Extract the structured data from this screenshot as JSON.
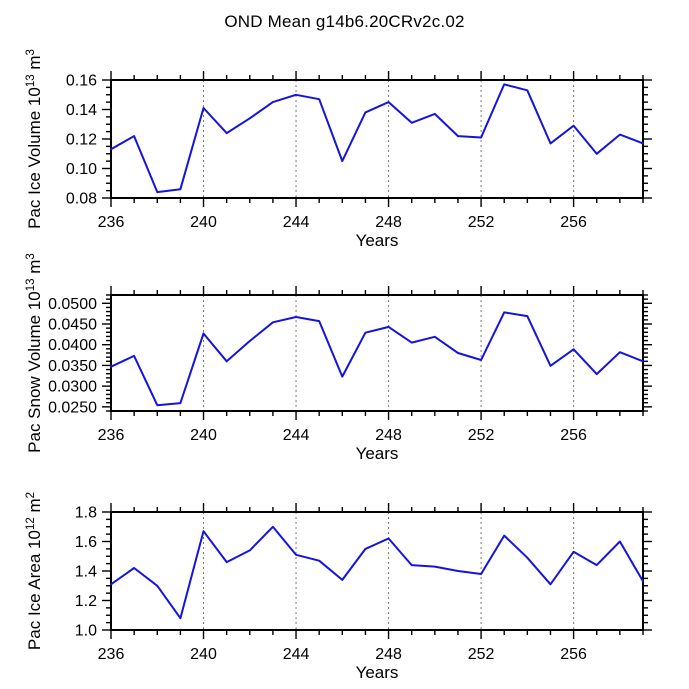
{
  "title": "OND Mean g14b6.20CRv2c.02",
  "style": {
    "line_color": "#1414dd",
    "grid_color": "#7a7a7a",
    "axis_color": "#000000",
    "background": "#ffffff"
  },
  "chart_data": [
    {
      "type": "line",
      "title": "OND Mean g14b6.20CRv2c.02",
      "ylabel": "Pac Ice Volume 10^13 m^3",
      "ylabel_parts": [
        {
          "t": "Pac Ice Volume 10"
        },
        {
          "t": "13",
          "sup": true
        },
        {
          "t": " m"
        },
        {
          "t": "3",
          "sup": true
        }
      ],
      "xlabel": "Years",
      "x": [
        236,
        237,
        238,
        239,
        240,
        241,
        242,
        243,
        244,
        245,
        246,
        247,
        248,
        249,
        250,
        251,
        252,
        253,
        254,
        255,
        256,
        257,
        258,
        259
      ],
      "values": [
        0.113,
        0.122,
        0.084,
        0.086,
        0.141,
        0.124,
        0.134,
        0.145,
        0.15,
        0.147,
        0.105,
        0.138,
        0.145,
        0.131,
        0.137,
        0.122,
        0.121,
        0.157,
        0.153,
        0.117,
        0.129,
        0.11,
        0.123,
        0.117
      ],
      "xlim": [
        236,
        259
      ],
      "ylim": [
        0.08,
        0.16
      ],
      "xticks": [
        236,
        240,
        244,
        248,
        252,
        256
      ],
      "xtick_labels": [
        "236",
        "240",
        "244",
        "248",
        "252",
        "256"
      ],
      "x_minor_step": 1,
      "yticks": [
        0.08,
        0.1,
        0.12,
        0.14,
        0.16
      ],
      "ytick_labels": [
        "0.08",
        "0.10",
        "0.12",
        "0.14",
        "0.16"
      ],
      "y_minor_step": 0.005,
      "grid_x": [
        240,
        244,
        248,
        252,
        256
      ],
      "grid_style": "dashed",
      "legend": null
    },
    {
      "type": "line",
      "title": "",
      "ylabel": "Pac Snow Volume 10^13 m^3",
      "ylabel_parts": [
        {
          "t": "Pac Snow Volume 10"
        },
        {
          "t": "13",
          "sup": true
        },
        {
          "t": " m"
        },
        {
          "t": "3",
          "sup": true
        }
      ],
      "xlabel": "Years",
      "x": [
        236,
        237,
        238,
        239,
        240,
        241,
        242,
        243,
        244,
        245,
        246,
        247,
        248,
        249,
        250,
        251,
        252,
        253,
        254,
        255,
        256,
        257,
        258,
        259
      ],
      "values": [
        0.0347,
        0.0373,
        0.0254,
        0.0259,
        0.0427,
        0.036,
        0.0409,
        0.0454,
        0.0467,
        0.0457,
        0.0323,
        0.0429,
        0.0443,
        0.0405,
        0.0419,
        0.038,
        0.0363,
        0.0478,
        0.0469,
        0.0349,
        0.0389,
        0.0329,
        0.0382,
        0.036
      ],
      "xlim": [
        236,
        259
      ],
      "ylim": [
        0.024,
        0.052
      ],
      "xticks": [
        236,
        240,
        244,
        248,
        252,
        256
      ],
      "xtick_labels": [
        "236",
        "240",
        "244",
        "248",
        "252",
        "256"
      ],
      "x_minor_step": 1,
      "yticks": [
        0.025,
        0.03,
        0.035,
        0.04,
        0.045,
        0.05
      ],
      "ytick_labels": [
        "0.0250",
        "0.0300",
        "0.0350",
        "0.0400",
        "0.0450",
        "0.0500"
      ],
      "y_minor_step": 0.001,
      "grid_x": [
        240,
        244,
        248,
        252,
        256
      ],
      "grid_style": "dashed",
      "legend": null
    },
    {
      "type": "line",
      "title": "",
      "ylabel": "Pac Ice Area 10^12 m^2",
      "ylabel_parts": [
        {
          "t": "Pac Ice Area 10"
        },
        {
          "t": "12",
          "sup": true
        },
        {
          "t": " m"
        },
        {
          "t": "2",
          "sup": true
        }
      ],
      "xlabel": "Years",
      "x": [
        236,
        237,
        238,
        239,
        240,
        241,
        242,
        243,
        244,
        245,
        246,
        247,
        248,
        249,
        250,
        251,
        252,
        253,
        254,
        255,
        256,
        257,
        258,
        259
      ],
      "values": [
        1.31,
        1.42,
        1.3,
        1.08,
        1.67,
        1.46,
        1.54,
        1.7,
        1.51,
        1.47,
        1.34,
        1.55,
        1.62,
        1.44,
        1.43,
        1.4,
        1.38,
        1.64,
        1.49,
        1.31,
        1.53,
        1.44,
        1.6,
        1.33
      ],
      "xlim": [
        236,
        259
      ],
      "ylim": [
        1.0,
        1.8
      ],
      "xticks": [
        236,
        240,
        244,
        248,
        252,
        256
      ],
      "xtick_labels": [
        "236",
        "240",
        "244",
        "248",
        "252",
        "256"
      ],
      "x_minor_step": 1,
      "yticks": [
        1.0,
        1.2,
        1.4,
        1.6,
        1.8
      ],
      "ytick_labels": [
        "1.0",
        "1.2",
        "1.4",
        "1.6",
        "1.8"
      ],
      "y_minor_step": 0.05,
      "grid_x": [
        240,
        244,
        248,
        252,
        256
      ],
      "grid_style": "dashed",
      "legend": null
    }
  ]
}
